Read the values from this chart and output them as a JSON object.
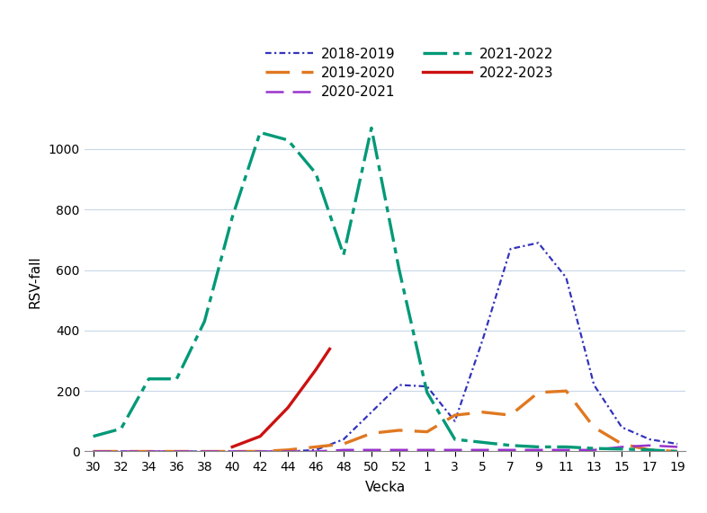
{
  "ylabel": "RSV-fall",
  "xlabel": "Vecka",
  "x_tick_labels": [
    "30",
    "32",
    "34",
    "36",
    "38",
    "40",
    "42",
    "44",
    "46",
    "48",
    "50",
    "52",
    "1",
    "3",
    "5",
    "7",
    "9",
    "11",
    "13",
    "15",
    "17",
    "19"
  ],
  "ylim": [
    0,
    1120
  ],
  "yticks": [
    0,
    200,
    400,
    600,
    800,
    1000
  ],
  "background_color": "#ffffff",
  "grid_color": "#c8d8e8",
  "series": [
    {
      "label": "2018-2019",
      "color": "#3333bb",
      "linewidth": 1.6,
      "style": "dotdash",
      "data_x": [
        30,
        32,
        34,
        36,
        38,
        40,
        42,
        44,
        46,
        48,
        50,
        52,
        1,
        3,
        5,
        7,
        9,
        11,
        13,
        15,
        17,
        19
      ],
      "data_y": [
        0,
        0,
        0,
        0,
        0,
        0,
        0,
        0,
        5,
        40,
        130,
        220,
        215,
        100,
        370,
        670,
        690,
        575,
        220,
        80,
        40,
        25
      ]
    },
    {
      "label": "2019-2020",
      "color": "#e07820",
      "linewidth": 2.4,
      "style": "longdash",
      "data_x": [
        30,
        32,
        34,
        36,
        38,
        40,
        42,
        44,
        46,
        48,
        50,
        52,
        1,
        3,
        5,
        7,
        9,
        11,
        13,
        15,
        17,
        19
      ],
      "data_y": [
        0,
        0,
        0,
        0,
        0,
        0,
        0,
        5,
        15,
        25,
        60,
        70,
        65,
        120,
        130,
        120,
        195,
        200,
        80,
        25,
        5,
        0
      ]
    },
    {
      "label": "2020-2021",
      "color": "#9933cc",
      "linewidth": 1.8,
      "style": "longdash",
      "data_x": [
        30,
        32,
        34,
        36,
        38,
        40,
        42,
        44,
        46,
        48,
        50,
        52,
        1,
        3,
        5,
        7,
        9,
        11,
        13,
        15,
        17,
        19
      ],
      "data_y": [
        0,
        0,
        0,
        0,
        0,
        0,
        0,
        0,
        0,
        5,
        5,
        5,
        5,
        5,
        5,
        5,
        5,
        5,
        5,
        15,
        20,
        15
      ]
    },
    {
      "label": "2021-2022",
      "color": "#009977",
      "linewidth": 2.4,
      "style": "dashdotdot",
      "data_x": [
        30,
        32,
        34,
        36,
        38,
        40,
        42,
        44,
        46,
        48,
        50,
        52,
        1,
        3,
        5,
        7,
        9,
        11,
        13,
        15,
        17,
        19
      ],
      "data_y": [
        50,
        75,
        240,
        240,
        430,
        775,
        1055,
        1030,
        920,
        650,
        1070,
        600,
        195,
        40,
        30,
        20,
        15,
        15,
        10,
        8,
        5,
        0
      ]
    },
    {
      "label": "2022-2023",
      "color": "#cc1111",
      "linewidth": 2.4,
      "style": "solid",
      "data_x": [
        40,
        42,
        44,
        46,
        47
      ],
      "data_y": [
        15,
        50,
        145,
        270,
        339
      ]
    }
  ],
  "legend_entries": [
    {
      "label": "2018-2019",
      "col": 0,
      "row": 0
    },
    {
      "label": "2019-2020",
      "col": 1,
      "row": 0
    },
    {
      "label": "2020-2021",
      "col": 0,
      "row": 1
    },
    {
      "label": "2021-2022",
      "col": 1,
      "row": 1
    },
    {
      "label": "2022-2023",
      "col": 0,
      "row": 2
    }
  ]
}
